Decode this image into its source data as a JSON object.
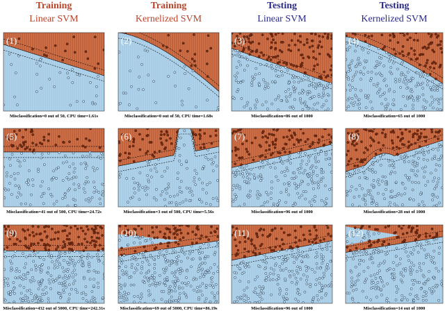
{
  "columns": [
    {
      "phase": "Training",
      "model": "Linear SVM"
    },
    {
      "phase": "Training",
      "model": "Kernelized SVM"
    },
    {
      "phase": "Testing",
      "model": "Linear SVM"
    },
    {
      "phase": "Testing",
      "model": "Kernelized SVM"
    }
  ],
  "panels": [
    {
      "label": "(1)",
      "caption": "Misclassification=0 out of 50, CPU time=1.61s"
    },
    {
      "label": "(2)",
      "caption": "Misclassification=0 out of 50, CPU time=1.68s"
    },
    {
      "label": "(3)",
      "caption": "Misclassification=86 out of 1000"
    },
    {
      "label": "(4)",
      "caption": "Misclassification=65 out of 1000"
    },
    {
      "label": "(5)",
      "caption": "Misclassification=41 out of 500, CPU time=24.72s"
    },
    {
      "label": "(6)",
      "caption": "Misclassification=3 out of 500, CPU time=5.56s"
    },
    {
      "label": "(7)",
      "caption": "Misclassification=96 out of 1000"
    },
    {
      "label": "(8)",
      "caption": "Misclassification=28 out of 1000"
    },
    {
      "label": "(9)",
      "caption": "Misclassification=432 out of 5000, CPU time=242.31s"
    },
    {
      "label": "(10)",
      "caption": "Misclassification=69 out of 5000, CPU time=86.19s"
    },
    {
      "label": "(11)",
      "caption": "Misclassification=96 out of 1000"
    },
    {
      "label": "(12)",
      "caption": "Misclassification=14 out of 1000"
    }
  ]
}
